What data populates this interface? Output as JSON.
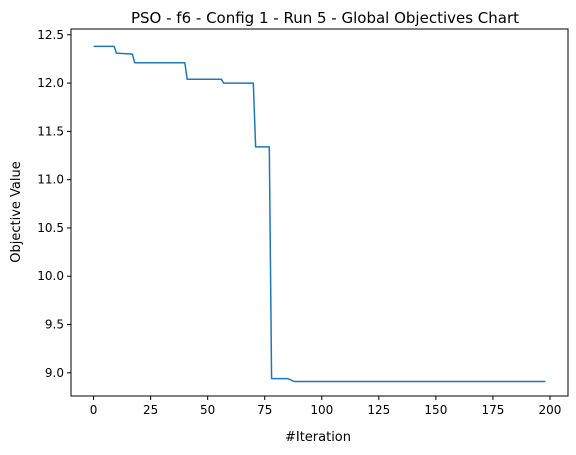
{
  "chart_data": {
    "type": "line",
    "title": "PSO - f6 - Config 1 - Run 5 - Global Objectives Chart",
    "xlabel": "#Iteration",
    "ylabel": "Objective Value",
    "xlim": [
      -9.9,
      207.9
    ],
    "ylim": [
      8.76,
      12.56
    ],
    "grid": false,
    "xticks": [
      0,
      25,
      50,
      75,
      100,
      125,
      150,
      175,
      200
    ],
    "xtick_labels": [
      "0",
      "25",
      "50",
      "75",
      "100",
      "125",
      "150",
      "175",
      "200"
    ],
    "yticks": [
      9.0,
      9.5,
      10.0,
      10.5,
      11.0,
      11.5,
      12.0,
      12.5
    ],
    "ytick_labels": [
      "9.0",
      "9.5",
      "10.0",
      "10.5",
      "11.0",
      "11.5",
      "12.0",
      "12.5"
    ],
    "series": [
      {
        "color": "#1f77b4",
        "x": [
          0,
          9,
          10,
          17,
          18,
          36,
          37,
          40,
          41,
          56,
          57,
          70,
          71,
          72,
          77,
          78,
          85,
          88,
          198
        ],
        "y": [
          12.38,
          12.38,
          12.31,
          12.3,
          12.21,
          12.21,
          12.21,
          12.21,
          12.04,
          12.04,
          12.0,
          12.0,
          11.34,
          11.34,
          11.34,
          8.94,
          8.94,
          8.91,
          8.91
        ]
      }
    ]
  }
}
